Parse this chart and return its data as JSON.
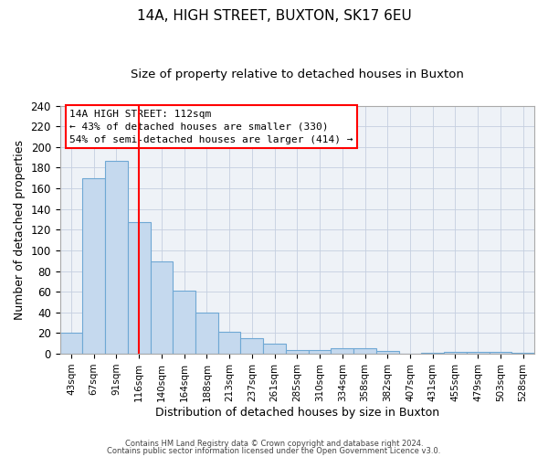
{
  "title": "14A, HIGH STREET, BUXTON, SK17 6EU",
  "subtitle": "Size of property relative to detached houses in Buxton",
  "xlabel": "Distribution of detached houses by size in Buxton",
  "ylabel": "Number of detached properties",
  "bin_labels": [
    "43sqm",
    "67sqm",
    "91sqm",
    "116sqm",
    "140sqm",
    "164sqm",
    "188sqm",
    "213sqm",
    "237sqm",
    "261sqm",
    "285sqm",
    "310sqm",
    "334sqm",
    "358sqm",
    "382sqm",
    "407sqm",
    "431sqm",
    "455sqm",
    "479sqm",
    "503sqm",
    "528sqm"
  ],
  "bar_values": [
    20,
    170,
    187,
    127,
    89,
    61,
    40,
    21,
    15,
    10,
    4,
    4,
    5,
    5,
    3,
    0,
    1,
    2,
    2,
    2,
    1
  ],
  "bar_color": "#c5d9ee",
  "bar_edge_color": "#6fa8d4",
  "vline_color": "red",
  "vline_pos": 3.5,
  "ylim": [
    0,
    240
  ],
  "yticks": [
    0,
    20,
    40,
    60,
    80,
    100,
    120,
    140,
    160,
    180,
    200,
    220,
    240
  ],
  "annotation_title": "14A HIGH STREET: 112sqm",
  "annotation_line1": "← 43% of detached houses are smaller (330)",
  "annotation_line2": "54% of semi-detached houses are larger (414) →",
  "annotation_box_color": "red",
  "footer_line1": "Contains HM Land Registry data © Crown copyright and database right 2024.",
  "footer_line2": "Contains public sector information licensed under the Open Government Licence v3.0.",
  "plot_bg_color": "#eef2f7",
  "grid_color": "#c5cfe0"
}
